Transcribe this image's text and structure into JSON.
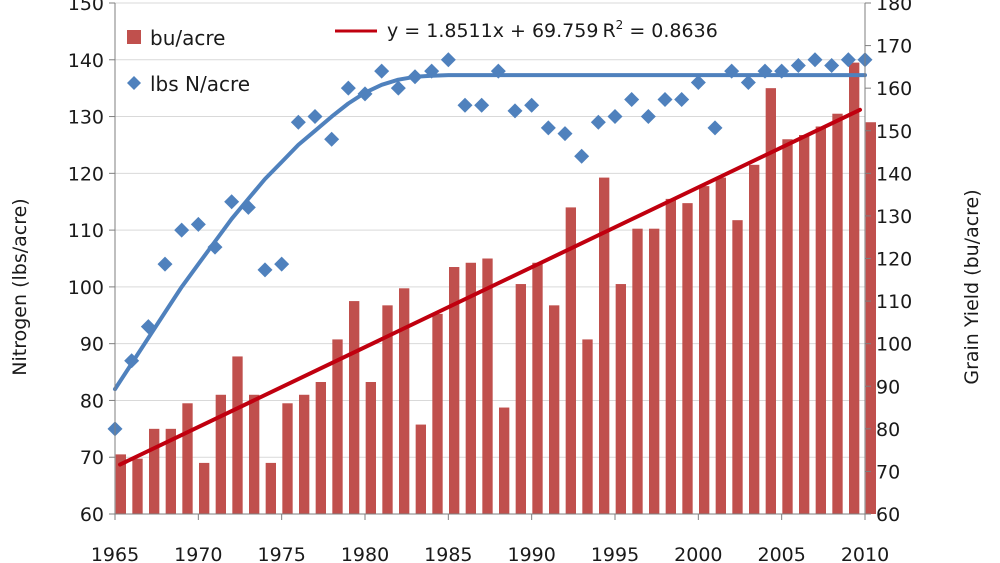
{
  "chart_data": {
    "type": "bar",
    "x": [
      1965,
      1966,
      1967,
      1968,
      1969,
      1970,
      1971,
      1972,
      1973,
      1974,
      1975,
      1976,
      1977,
      1978,
      1979,
      1980,
      1981,
      1982,
      1983,
      1984,
      1985,
      1986,
      1987,
      1988,
      1989,
      1990,
      1991,
      1992,
      1993,
      1994,
      1995,
      1996,
      1997,
      1998,
      1999,
      2000,
      2001,
      2002,
      2003,
      2004,
      2005,
      2006,
      2007,
      2008,
      2009,
      2010
    ],
    "xlim": [
      1965,
      2010
    ],
    "x_ticks": [
      "1965",
      "1970",
      "1975",
      "1980",
      "1985",
      "1990",
      "1995",
      "2000",
      "2005",
      "2010"
    ],
    "y_left_label": "Nitrogen (lbs/acre)",
    "y_left_lim": [
      60,
      150
    ],
    "y_left_ticks": [
      "60",
      "70",
      "80",
      "90",
      "100",
      "110",
      "120",
      "130",
      "140",
      "150"
    ],
    "y_right_label": "Grain Yield (bu/acre)",
    "y_right_lim": [
      60,
      180
    ],
    "y_right_ticks": [
      "60",
      "70",
      "80",
      "90",
      "100",
      "110",
      "120",
      "130",
      "140",
      "150",
      "160",
      "170",
      "180"
    ],
    "series": [
      {
        "name": "bu/acre",
        "kind": "bar",
        "axis": "right",
        "color": "#c0504d",
        "values": [
          74,
          73,
          80,
          80,
          86,
          72,
          88,
          97,
          88,
          72,
          86,
          88,
          91,
          101,
          110,
          91,
          109,
          113,
          81,
          107,
          118,
          119,
          120,
          85,
          114,
          119,
          109,
          132,
          101,
          139,
          114,
          127,
          127,
          134,
          133,
          137,
          139,
          129,
          142,
          160,
          148,
          149,
          151,
          154,
          166,
          152
        ]
      },
      {
        "name": "lbs N/acre",
        "kind": "scatter",
        "axis": "left",
        "color": "#4f81bd",
        "values": [
          75,
          87,
          93,
          104,
          110,
          111,
          107,
          115,
          114,
          103,
          104,
          129,
          130,
          126,
          135,
          134,
          138,
          135,
          137,
          138,
          140,
          132,
          132,
          138,
          131,
          132,
          128,
          127,
          123,
          129,
          130,
          133,
          130,
          133,
          133,
          136,
          128,
          138,
          136,
          138,
          138,
          139,
          140,
          139,
          140,
          140
        ]
      }
    ],
    "trendline_bar": {
      "color": "#c0000f",
      "label": "y = 1.8511x + 69.759",
      "r2_label": "R",
      "r2_sup": "2",
      "r2_value": " = 0.8636",
      "slope": 1.8511,
      "intercept": 69.759
    },
    "fit_scatter": {
      "color": "#4f81bd",
      "points": [
        [
          1965,
          82
        ],
        [
          1966,
          86.5
        ],
        [
          1967,
          91
        ],
        [
          1968,
          95.5
        ],
        [
          1969,
          100
        ],
        [
          1970,
          104
        ],
        [
          1971,
          108
        ],
        [
          1972,
          112
        ],
        [
          1973,
          115.5
        ],
        [
          1974,
          119
        ],
        [
          1975,
          122
        ],
        [
          1976,
          125
        ],
        [
          1977,
          127.5
        ],
        [
          1978,
          130
        ],
        [
          1979,
          132.3
        ],
        [
          1980,
          134.2
        ],
        [
          1981,
          135.6
        ],
        [
          1982,
          136.5
        ],
        [
          1983,
          137
        ],
        [
          1984,
          137.2
        ],
        [
          1985,
          137.3
        ],
        [
          2010,
          137.3
        ]
      ]
    },
    "legend": {
      "placement": "top-left"
    },
    "grid": true
  }
}
